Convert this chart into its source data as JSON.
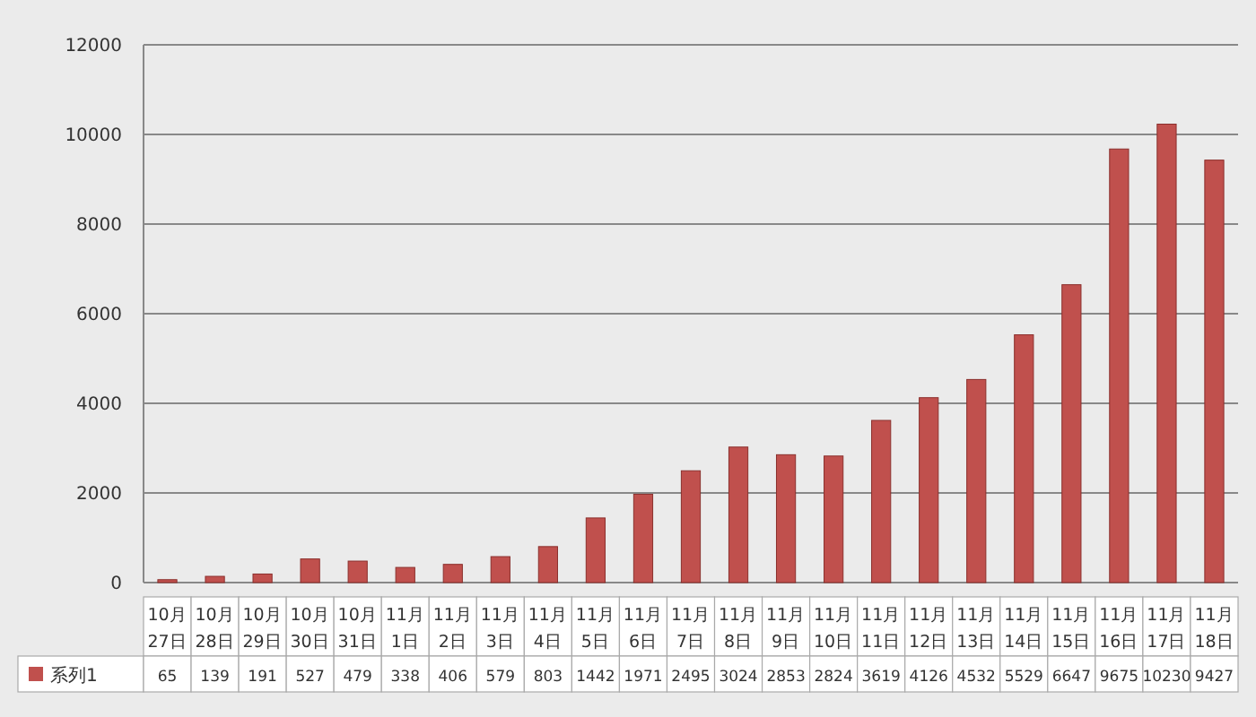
{
  "chart_data": {
    "type": "bar",
    "categories": [
      "10月27日",
      "10月28日",
      "10月29日",
      "10月30日",
      "10月31日",
      "11月1日",
      "11月2日",
      "11月3日",
      "11月4日",
      "11月5日",
      "11月6日",
      "11月7日",
      "11月8日",
      "11月9日",
      "11月10日",
      "11月11日",
      "11月12日",
      "11月13日",
      "11月14日",
      "11月15日",
      "11月16日",
      "11月17日",
      "11月18日"
    ],
    "series": [
      {
        "name": "系列1",
        "color": "#c0504d",
        "values": [
          65,
          139,
          191,
          527,
          479,
          338,
          406,
          579,
          803,
          1442,
          1971,
          2495,
          3024,
          2853,
          2824,
          3619,
          4126,
          4532,
          5529,
          6647,
          9675,
          10230,
          9427
        ]
      }
    ],
    "ylim": [
      0,
      12000
    ],
    "yticks": [
      0,
      2000,
      4000,
      6000,
      8000,
      10000,
      12000
    ],
    "grid": "y",
    "legend": "bottom",
    "data_labels": true
  }
}
